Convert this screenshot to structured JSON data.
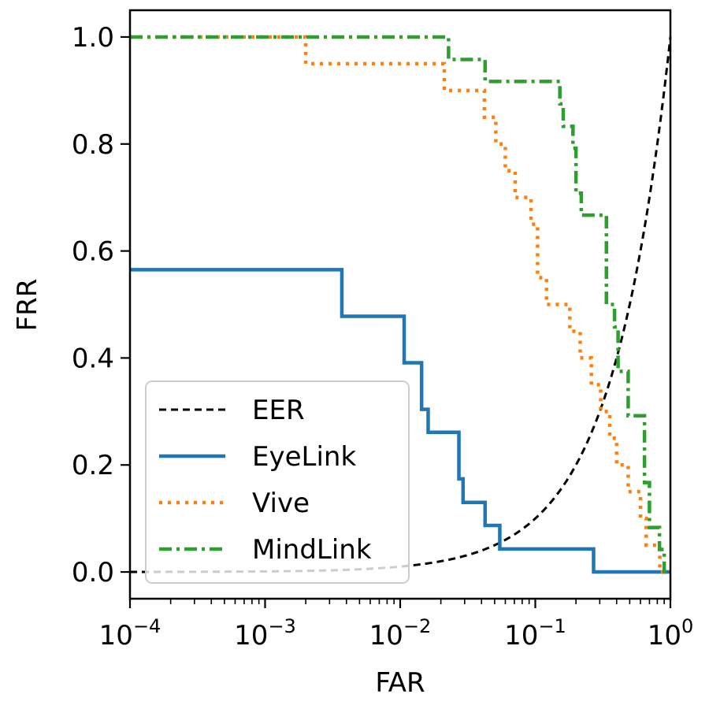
{
  "chart_data": {
    "type": "line",
    "xlabel": "FAR",
    "ylabel": "FRR",
    "xscale": "log",
    "xlim": [
      0.0001,
      1
    ],
    "ylim": [
      -0.05,
      1.05
    ],
    "x_ticks": [
      {
        "value": 0.0001,
        "base": "10",
        "exp": "−4"
      },
      {
        "value": 0.001,
        "base": "10",
        "exp": "−3"
      },
      {
        "value": 0.01,
        "base": "10",
        "exp": "−2"
      },
      {
        "value": 0.1,
        "base": "10",
        "exp": "−1"
      },
      {
        "value": 1,
        "base": "10",
        "exp": "0"
      }
    ],
    "y_ticks": [
      {
        "value": 0.0,
        "label": "0.0"
      },
      {
        "value": 0.2,
        "label": "0.2"
      },
      {
        "value": 0.4,
        "label": "0.4"
      },
      {
        "value": 0.6,
        "label": "0.6"
      },
      {
        "value": 0.8,
        "label": "0.8"
      },
      {
        "value": 1.0,
        "label": "1.0"
      }
    ],
    "grid": false,
    "legend_position": "lower-left",
    "series": [
      {
        "name": "EER",
        "style": "dashed",
        "color": "#000000",
        "function": "y = x",
        "x_range": [
          0.0001,
          1
        ]
      },
      {
        "name": "EyeLink",
        "style": "solid",
        "color": "#1f77b4",
        "x": [
          0.0001,
          0.0037,
          0.0037,
          0.0107,
          0.0107,
          0.0144,
          0.0144,
          0.0161,
          0.0161,
          0.0272,
          0.0272,
          0.0292,
          0.0292,
          0.0425,
          0.0425,
          0.0546,
          0.0546,
          0.27,
          0.27,
          1.0
        ],
        "y": [
          0.565,
          0.565,
          0.478,
          0.478,
          0.391,
          0.391,
          0.304,
          0.304,
          0.261,
          0.261,
          0.174,
          0.174,
          0.13,
          0.13,
          0.087,
          0.087,
          0.043,
          0.043,
          0.0,
          0.0
        ]
      },
      {
        "name": "Vive",
        "style": "dotted",
        "color": "#ff7f0e",
        "x": [
          0.0001,
          0.002,
          0.002,
          0.0212,
          0.0212,
          0.042,
          0.042,
          0.051,
          0.051,
          0.06,
          0.06,
          0.071,
          0.071,
          0.093,
          0.093,
          0.104,
          0.104,
          0.121,
          0.121,
          0.18,
          0.18,
          0.215,
          0.215,
          0.26,
          0.26,
          0.305,
          0.305,
          0.356,
          0.356,
          0.4,
          0.4,
          0.487,
          0.487,
          0.6,
          0.6,
          0.662,
          0.662,
          0.835,
          0.835,
          1.0
        ],
        "y": [
          1.0,
          1.0,
          0.95,
          0.95,
          0.9,
          0.9,
          0.85,
          0.85,
          0.8,
          0.8,
          0.75,
          0.75,
          0.7,
          0.7,
          0.65,
          0.65,
          0.55,
          0.55,
          0.5,
          0.5,
          0.45,
          0.45,
          0.4,
          0.4,
          0.35,
          0.35,
          0.3,
          0.3,
          0.25,
          0.25,
          0.2,
          0.2,
          0.15,
          0.15,
          0.1,
          0.1,
          0.05,
          0.05,
          0.0,
          0.0
        ]
      },
      {
        "name": "MindLink",
        "style": "dashdot",
        "color": "#2ca02c",
        "x": [
          0.0001,
          0.0228,
          0.0228,
          0.0425,
          0.0425,
          0.152,
          0.152,
          0.161,
          0.161,
          0.19,
          0.19,
          0.2,
          0.2,
          0.219,
          0.219,
          0.336,
          0.336,
          0.386,
          0.386,
          0.41,
          0.41,
          0.487,
          0.487,
          0.643,
          0.643,
          0.7,
          0.7,
          0.83,
          0.83,
          0.9,
          0.9,
          1.0
        ],
        "y": [
          1.0,
          1.0,
          0.958,
          0.958,
          0.917,
          0.917,
          0.875,
          0.875,
          0.833,
          0.833,
          0.792,
          0.792,
          0.708,
          0.708,
          0.667,
          0.667,
          0.5,
          0.5,
          0.458,
          0.458,
          0.375,
          0.375,
          0.292,
          0.292,
          0.167,
          0.167,
          0.083,
          0.083,
          0.042,
          0.042,
          0.0,
          0.0
        ]
      }
    ]
  }
}
